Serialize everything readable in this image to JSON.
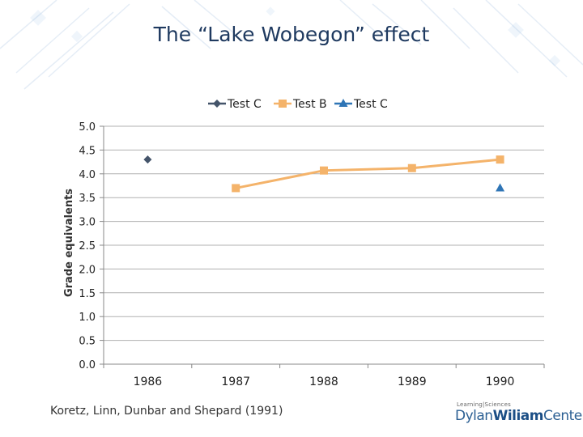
{
  "slide": {
    "title": "The “Lake Wobegon” effect",
    "citation": "Koretz, Linn, Dunbar and Shepard (1991)",
    "logo": {
      "small_text": "Learning|Sciences",
      "main_part1": "Dylan",
      "main_part2": "Wiliam",
      "main_part3": "Center"
    }
  },
  "colors": {
    "title": "#1f3a60",
    "test_c_1986": "#44546a",
    "test_b": "#f4b36a",
    "test_c_1990": "#2f75b6",
    "grid": "#b0b0b0"
  },
  "chart_data": {
    "type": "line",
    "title": "",
    "ylabel": "Grade equivalents",
    "xlabel": "",
    "categories": [
      "1986",
      "1987",
      "1988",
      "1989",
      "1990"
    ],
    "ylim": [
      0,
      5
    ],
    "yticks": [
      "0.0",
      "0.5",
      "1.0",
      "1.5",
      "2.0",
      "2.5",
      "3.0",
      "3.5",
      "4.0",
      "4.5",
      "5.0"
    ],
    "legend_position": "top",
    "series": [
      {
        "name": "Test C",
        "marker": "diamond",
        "values": [
          4.3,
          null,
          null,
          null,
          null
        ]
      },
      {
        "name": "Test B",
        "marker": "square",
        "values": [
          null,
          3.7,
          4.07,
          4.12,
          4.3
        ]
      },
      {
        "name": "Test C",
        "marker": "triangle",
        "values": [
          null,
          null,
          null,
          null,
          3.7
        ]
      }
    ]
  }
}
